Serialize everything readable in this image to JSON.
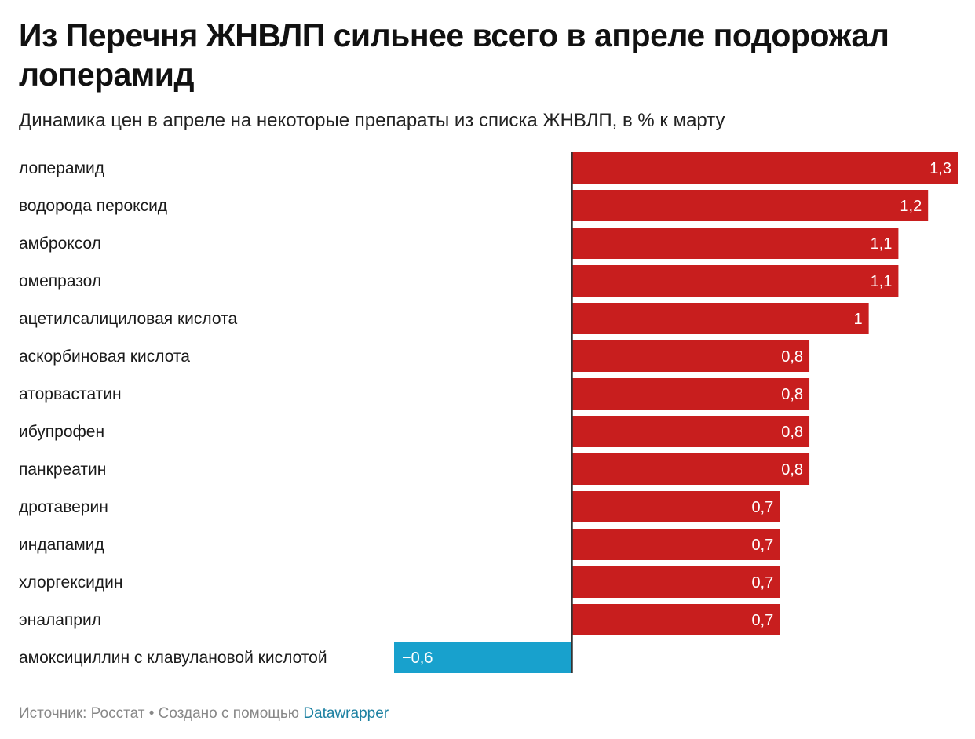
{
  "header": {
    "title": "Из Перечня ЖНВЛП сильнее всего в апреле подорожал лоперамид",
    "subtitle": "Динамика цен в апреле на некоторые препараты из списка ЖНВЛП, в % к марту"
  },
  "footer": {
    "source": "Источник: Росстат",
    "separator": " • ",
    "credit": "Создано с помощью ",
    "tool": "Datawrapper"
  },
  "colors": {
    "positive": "#c81e1e",
    "negative": "#18a1cd",
    "axis": "#333333"
  },
  "chart_data": {
    "type": "bar",
    "orientation": "horizontal",
    "title": "Из Перечня ЖНВЛП сильнее всего в апреле подорожал лоперамид",
    "subtitle": "Динамика цен в апреле на некоторые препараты из списка ЖНВЛП, в % к марту",
    "xlim": [
      -0.6,
      1.3
    ],
    "grid": false,
    "legend": "none",
    "categories": [
      "лоперамид",
      "водорода пероксид",
      "амброксол",
      "омепразол",
      "ацетилсалициловая кислота",
      "аскорбиновая кислота",
      "аторвастатин",
      "ибупрофен",
      "панкреатин",
      "дротаверин",
      "индапамид",
      "хлоргексидин",
      "эналаприл",
      "амоксициллин с клавулановой кислотой"
    ],
    "values": [
      1.3,
      1.2,
      1.1,
      1.1,
      1.0,
      0.8,
      0.8,
      0.8,
      0.8,
      0.7,
      0.7,
      0.7,
      0.7,
      -0.6
    ],
    "value_labels": [
      "1,3",
      "1,2",
      "1,1",
      "1,1",
      "1",
      "0,8",
      "0,8",
      "0,8",
      "0,8",
      "0,7",
      "0,7",
      "0,7",
      "0,7",
      "−0,6"
    ]
  }
}
